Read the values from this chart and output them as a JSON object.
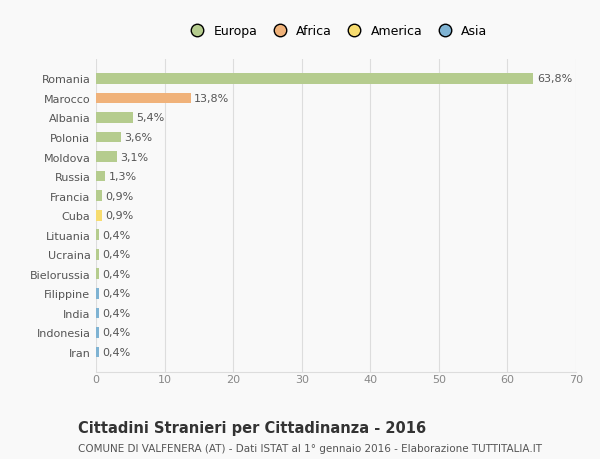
{
  "countries": [
    "Romania",
    "Marocco",
    "Albania",
    "Polonia",
    "Moldova",
    "Russia",
    "Francia",
    "Cuba",
    "Lituania",
    "Ucraina",
    "Bielorussia",
    "Filippine",
    "India",
    "Indonesia",
    "Iran"
  ],
  "values": [
    63.8,
    13.8,
    5.4,
    3.6,
    3.1,
    1.3,
    0.9,
    0.9,
    0.4,
    0.4,
    0.4,
    0.4,
    0.4,
    0.4,
    0.4
  ],
  "labels": [
    "63,8%",
    "13,8%",
    "5,4%",
    "3,6%",
    "3,1%",
    "1,3%",
    "0,9%",
    "0,9%",
    "0,4%",
    "0,4%",
    "0,4%",
    "0,4%",
    "0,4%",
    "0,4%",
    "0,4%"
  ],
  "continents": [
    "Europa",
    "Africa",
    "Europa",
    "Europa",
    "Europa",
    "Europa",
    "Europa",
    "America",
    "Europa",
    "Europa",
    "Europa",
    "Asia",
    "Asia",
    "Asia",
    "Asia"
  ],
  "colors": {
    "Europa": "#b5cc8e",
    "Africa": "#f0b27a",
    "America": "#f7dc6f",
    "Asia": "#7fb3d3"
  },
  "legend_order": [
    "Europa",
    "Africa",
    "America",
    "Asia"
  ],
  "legend_colors": [
    "#b5cc8e",
    "#f0b27a",
    "#f7dc6f",
    "#7fb3d3"
  ],
  "xlim": [
    0,
    70
  ],
  "xticks": [
    0,
    10,
    20,
    30,
    40,
    50,
    60,
    70
  ],
  "title": "Cittadini Stranieri per Cittadinanza - 2016",
  "subtitle": "COMUNE DI VALFENERA (AT) - Dati ISTAT al 1° gennaio 2016 - Elaborazione TUTTITALIA.IT",
  "bg_color": "#f9f9f9",
  "grid_color": "#dddddd",
  "bar_height": 0.55,
  "label_fontsize": 8.0,
  "tick_fontsize": 8.0,
  "title_fontsize": 10.5,
  "subtitle_fontsize": 7.5
}
